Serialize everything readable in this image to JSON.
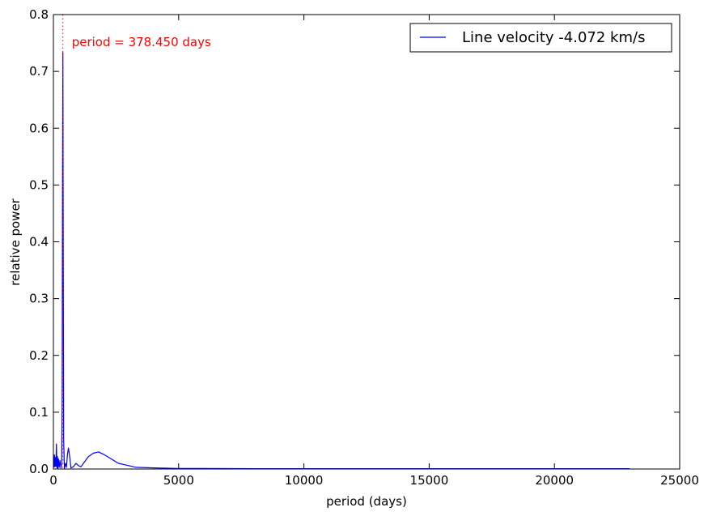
{
  "chart_data": {
    "type": "line",
    "title": "",
    "xlabel": "period (days)",
    "ylabel": "relative power",
    "xlim": [
      0,
      25000
    ],
    "ylim": [
      0,
      0.8
    ],
    "xticks": [
      0,
      5000,
      10000,
      15000,
      20000,
      25000
    ],
    "xtick_labels": [
      "0",
      "5000",
      "10000",
      "15000",
      "20000",
      "25000"
    ],
    "yticks": [
      0.0,
      0.1,
      0.2,
      0.3,
      0.4,
      0.5,
      0.6,
      0.7,
      0.8
    ],
    "ytick_labels": [
      "0.0",
      "0.1",
      "0.2",
      "0.3",
      "0.4",
      "0.5",
      "0.6",
      "0.7",
      "0.8"
    ],
    "grid": false,
    "legend": {
      "position": "top-right"
    },
    "series": [
      {
        "name": "Line velocity -4.072 km/s",
        "color": "#0000ff",
        "x": [
          20,
          40,
          60,
          80,
          100,
          120,
          140,
          160,
          180,
          200,
          230,
          260,
          300,
          330,
          350,
          365,
          378.45,
          392,
          410,
          440,
          480,
          520,
          560,
          600,
          650,
          700,
          800,
          900,
          1000,
          1100,
          1200,
          1400,
          1600,
          1800,
          2000,
          2300,
          2600,
          3000,
          3300,
          4000,
          5000,
          6000,
          8000,
          10000,
          12000,
          15000,
          18000,
          20000,
          23000
        ],
        "y": [
          0.003,
          0.025,
          0.004,
          0.02,
          0.005,
          0.044,
          0.002,
          0.022,
          0.001,
          0.018,
          0.003,
          0.015,
          0.002,
          0.01,
          0.12,
          0.5,
          0.733,
          0.4,
          0.05,
          0.001,
          0.01,
          0.003,
          0.025,
          0.037,
          0.022,
          0.002,
          0.004,
          0.01,
          0.006,
          0.004,
          0.01,
          0.022,
          0.028,
          0.03,
          0.026,
          0.018,
          0.01,
          0.006,
          0.003,
          0.002,
          0.001,
          0.001,
          0.0005,
          0.0005,
          0.0005,
          0.0005,
          0.0005,
          0.0005,
          0.0005
        ]
      }
    ],
    "annotations": [
      {
        "text": "period = 378.450 days",
        "x": 378.45,
        "color": "#ff0000",
        "style": "dotted vertical line"
      }
    ]
  }
}
